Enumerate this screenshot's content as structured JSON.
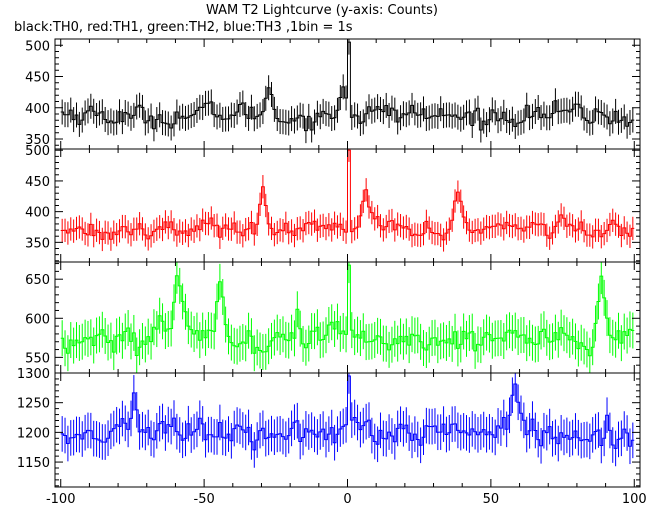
{
  "chart_data": {
    "type": "line",
    "title": "WAM T2 Lightcurve (y-axis: Counts)",
    "subtitle": "black:TH0, red:TH1, green:TH2, blue:TH3 ,1bin = 1s",
    "xlim": [
      -102,
      102
    ],
    "x_ticks": [
      -100,
      -50,
      0,
      50,
      100
    ],
    "x_tick_labels": [
      "-100",
      "-50",
      "0",
      "50",
      "100"
    ],
    "error_bars": true,
    "panels": [
      {
        "series": "TH0",
        "color": "#000000",
        "ylim": [
          334,
          510
        ],
        "y_ticks": [
          350,
          400,
          450,
          500
        ],
        "y_tick_labels": [
          "350",
          "400",
          "450",
          "500"
        ],
        "baseline": 388,
        "noise": 14,
        "err": 20,
        "spike": 505,
        "bumps": [
          {
            "x": -2,
            "v": 440
          },
          {
            "x": -28,
            "v": 435
          }
        ]
      },
      {
        "series": "TH1",
        "color": "#ff0000",
        "ylim": [
          318,
          502
        ],
        "y_ticks": [
          350,
          400,
          450,
          500
        ],
        "y_tick_labels": [
          "350",
          "400",
          "450",
          "500"
        ],
        "baseline": 372,
        "noise": 12,
        "err": 19,
        "spike": 500,
        "bumps": [
          {
            "x": -30,
            "v": 430
          },
          {
            "x": 38,
            "v": 440
          },
          {
            "x": 6,
            "v": 430
          }
        ]
      },
      {
        "series": "TH2",
        "color": "#00ff00",
        "ylim": [
          530,
          672
        ],
        "y_ticks": [
          550,
          600,
          650
        ],
        "y_tick_labels": [
          "550",
          "600",
          "650"
        ],
        "baseline": 575,
        "noise": 15,
        "err": 23,
        "spike": 668,
        "bumps": [
          {
            "x": -60,
            "v": 640
          },
          {
            "x": -45,
            "v": 650
          },
          {
            "x": 88,
            "v": 650
          }
        ]
      },
      {
        "series": "TH3",
        "color": "#0000ff",
        "ylim": [
          1108,
          1300
        ],
        "y_ticks": [
          1150,
          1200,
          1250,
          1300
        ],
        "y_tick_labels": [
          "1150",
          "1200",
          "1250",
          "1300"
        ],
        "baseline": 1198,
        "noise": 18,
        "err": 30,
        "spike": 1295,
        "bumps": [
          {
            "x": -75,
            "v": 1260
          },
          {
            "x": 58,
            "v": 1285
          }
        ]
      }
    ]
  }
}
